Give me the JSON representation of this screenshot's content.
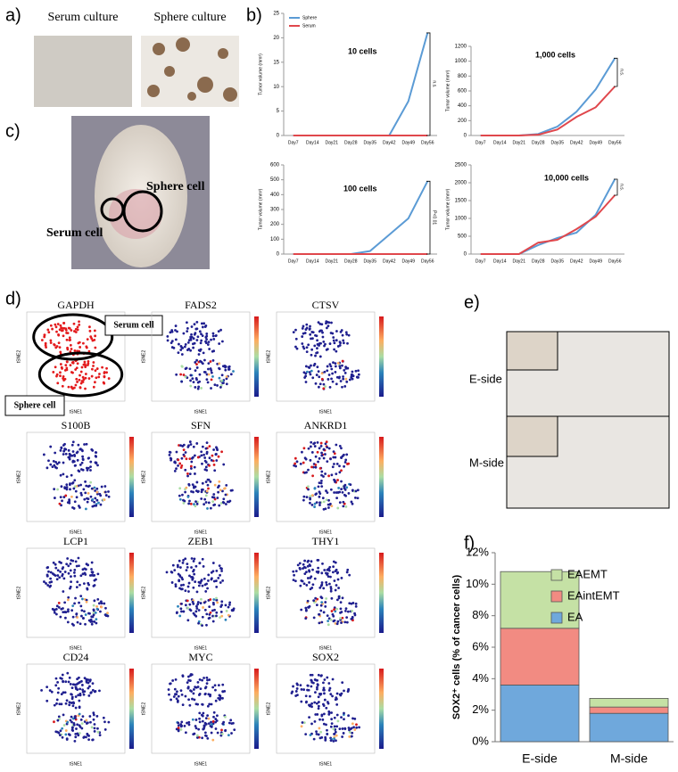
{
  "panel_labels": [
    "a)",
    "b)",
    "c)",
    "d)",
    "e)",
    "f)"
  ],
  "panel_a": {
    "titles": [
      "Serum culture",
      "Sphere culture"
    ]
  },
  "panel_c": {
    "labels": [
      "Sphere cell",
      "Serum cell"
    ]
  },
  "panel_d": {
    "genes": [
      "GAPDH",
      "FADS2",
      "CTSV",
      "S100B",
      "SFN",
      "ANKRD1",
      "LCP1",
      "ZEB1",
      "THY1",
      "CD24",
      "MYC",
      "SOX2"
    ],
    "cell_labels": [
      "Serum cell",
      "Sphere cell"
    ],
    "x_label": "tSNE1",
    "y_label": "tSNE2"
  },
  "panel_e": {
    "labels": [
      "E-side",
      "M-side"
    ]
  },
  "chart_data": [
    {
      "type": "line",
      "title": "10 cells",
      "y_label": "Tumor volume (mm³)",
      "legend": "upper left",
      "categories": [
        "Day7",
        "Day14",
        "Day21",
        "Day28",
        "Day35",
        "Day42",
        "Day49",
        "Day56"
      ],
      "series": [
        {
          "name": "Sphere",
          "color": "#5b9bd5",
          "values": [
            0,
            0,
            0,
            0,
            0,
            0,
            7,
            21
          ]
        },
        {
          "name": "Serum",
          "color": "#e0474c",
          "values": [
            0,
            0,
            0,
            0,
            0,
            0,
            0,
            0
          ]
        }
      ],
      "ylim": [
        0,
        25
      ],
      "yticks": [
        0,
        5,
        10,
        15,
        20,
        25
      ],
      "annotation": "n.s."
    },
    {
      "type": "line",
      "title": "1,000 cells",
      "y_label": "Tumor volume (mm³)",
      "categories": [
        "Day7",
        "Day14",
        "Day21",
        "Day28",
        "Day35",
        "Day42",
        "Day49",
        "Day56"
      ],
      "series": [
        {
          "name": "Sphere",
          "color": "#5b9bd5",
          "values": [
            0,
            0,
            0,
            20,
            120,
            320,
            620,
            1040
          ]
        },
        {
          "name": "Serum",
          "color": "#e0474c",
          "values": [
            0,
            0,
            0,
            10,
            80,
            250,
            380,
            660
          ]
        }
      ],
      "ylim": [
        0,
        1200
      ],
      "yticks": [
        0,
        200,
        400,
        600,
        800,
        1000,
        1200
      ],
      "annotation": "n.s."
    },
    {
      "type": "line",
      "title": "100 cells",
      "y_label": "Tumor volume (mm³)",
      "categories": [
        "Day7",
        "Day14",
        "Day21",
        "Day28",
        "Day35",
        "Day42",
        "Day49",
        "Day56"
      ],
      "series": [
        {
          "name": "Sphere",
          "color": "#5b9bd5",
          "values": [
            0,
            0,
            0,
            0,
            20,
            130,
            240,
            490
          ]
        },
        {
          "name": "Serum",
          "color": "#e0474c",
          "values": [
            0,
            0,
            0,
            0,
            0,
            0,
            0,
            0
          ]
        }
      ],
      "ylim": [
        0,
        600
      ],
      "yticks": [
        0,
        100,
        200,
        300,
        400,
        500,
        600
      ],
      "annotation": "P<0.01"
    },
    {
      "type": "line",
      "title": "10,000 cells",
      "y_label": "Tumor volume (mm³)",
      "categories": [
        "Day7",
        "Day14",
        "Day21",
        "Day28",
        "Day35",
        "Day42",
        "Day49",
        "Day56"
      ],
      "series": [
        {
          "name": "Sphere",
          "color": "#5b9bd5",
          "values": [
            0,
            0,
            0,
            250,
            450,
            600,
            1100,
            2100
          ]
        },
        {
          "name": "Serum",
          "color": "#e0474c",
          "values": [
            0,
            0,
            0,
            320,
            400,
            700,
            1050,
            1650
          ]
        }
      ],
      "ylim": [
        0,
        2500
      ],
      "yticks": [
        0,
        500,
        1000,
        1500,
        2000,
        2500
      ],
      "annotation": "n.s."
    },
    {
      "type": "bar",
      "stacked": true,
      "y_label": "SOX2⁺ cells (% of cancer cells)",
      "legend": "upper right",
      "categories": [
        "E-side",
        "M-side"
      ],
      "series": [
        {
          "name": "EA",
          "color": "#6fa8dc",
          "values": [
            3.6,
            1.8
          ]
        },
        {
          "name": "EAintEMT",
          "color": "#f28b82",
          "values": [
            3.6,
            0.4
          ]
        },
        {
          "name": "EAEMT",
          "color": "#c5e1a5",
          "values": [
            3.6,
            0.55
          ]
        }
      ],
      "ylim": [
        0,
        12
      ],
      "yticks": [
        {
          "value": 0,
          "label": "0%"
        },
        {
          "value": 2,
          "label": "2%"
        },
        {
          "value": 4,
          "label": "4%"
        },
        {
          "value": 6,
          "label": "6%"
        },
        {
          "value": 8,
          "label": "8%"
        },
        {
          "value": 10,
          "label": "10%"
        },
        {
          "value": 12,
          "label": "12%"
        }
      ]
    }
  ]
}
